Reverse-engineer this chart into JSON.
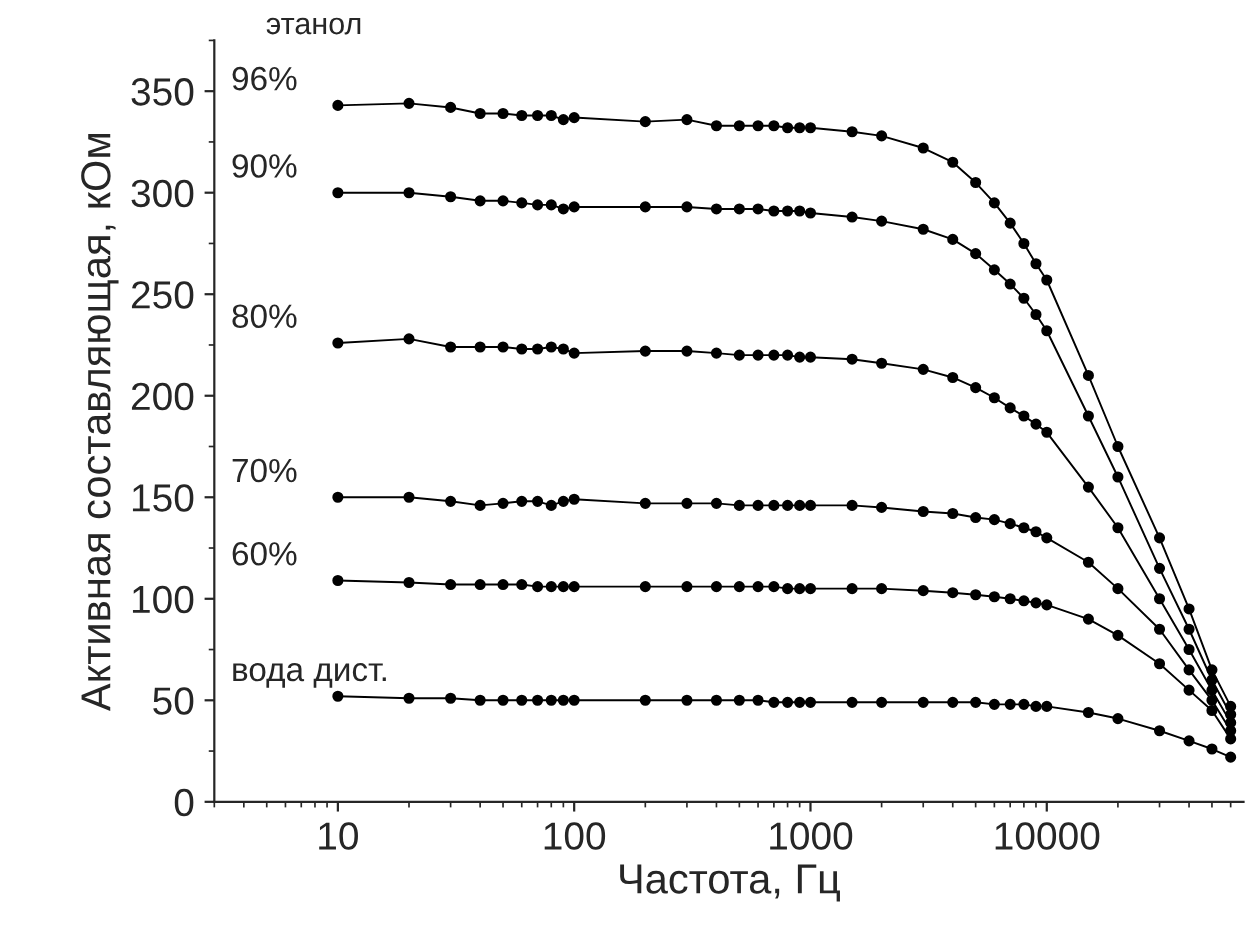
{
  "chart_data": {
    "type": "line",
    "xlabel": "Частота, Гц",
    "ylabel": "Активная составляющая, кОм",
    "log": "x",
    "grid": false,
    "marker": "circle",
    "line_style": "solid",
    "annotations": [
      "этанол"
    ],
    "xlim": [
      3,
      68000
    ],
    "xticks": [
      10,
      100,
      1000,
      10000
    ],
    "ylim": [
      0,
      375
    ],
    "yticks": [
      0,
      50,
      100,
      150,
      200,
      250,
      300,
      350
    ],
    "x": [
      10,
      20,
      30,
      40,
      50,
      60,
      70,
      80,
      90,
      100,
      200,
      300,
      400,
      500,
      600,
      700,
      800,
      900,
      1000,
      1500,
      2000,
      3000,
      4000,
      5000,
      6000,
      7000,
      8000,
      9000,
      10000,
      15000,
      20000,
      30000,
      40000,
      50000,
      60000
    ],
    "series": [
      {
        "name": "96%",
        "color": "#000000",
        "values": [
          343,
          344,
          342,
          339,
          339,
          338,
          338,
          338,
          336,
          337,
          335,
          336,
          333,
          333,
          333,
          333,
          332,
          332,
          332,
          330,
          328,
          322,
          315,
          305,
          295,
          285,
          275,
          265,
          257,
          210,
          175,
          130,
          95,
          65,
          47
        ]
      },
      {
        "name": "90%",
        "color": "#000000",
        "values": [
          300,
          300,
          298,
          296,
          296,
          295,
          294,
          294,
          292,
          293,
          293,
          293,
          292,
          292,
          292,
          291,
          291,
          291,
          290,
          288,
          286,
          282,
          277,
          270,
          262,
          255,
          248,
          240,
          232,
          190,
          160,
          115,
          85,
          60,
          43
        ]
      },
      {
        "name": "80%",
        "color": "#000000",
        "values": [
          226,
          228,
          224,
          224,
          224,
          223,
          223,
          224,
          223,
          221,
          222,
          222,
          221,
          220,
          220,
          220,
          220,
          219,
          219,
          218,
          216,
          213,
          209,
          204,
          199,
          194,
          190,
          186,
          182,
          155,
          135,
          100,
          75,
          55,
          39
        ]
      },
      {
        "name": "70%",
        "color": "#000000",
        "values": [
          150,
          150,
          148,
          146,
          147,
          148,
          148,
          146,
          148,
          149,
          147,
          147,
          147,
          146,
          146,
          146,
          146,
          146,
          146,
          146,
          145,
          143,
          142,
          140,
          139,
          137,
          135,
          133,
          130,
          118,
          105,
          85,
          65,
          50,
          35
        ]
      },
      {
        "name": "60%",
        "color": "#000000",
        "values": [
          109,
          108,
          107,
          107,
          107,
          107,
          106,
          106,
          106,
          106,
          106,
          106,
          106,
          106,
          106,
          106,
          105,
          105,
          105,
          105,
          105,
          104,
          103,
          102,
          101,
          100,
          99,
          98,
          97,
          90,
          82,
          68,
          55,
          45,
          31
        ]
      },
      {
        "name": "вода дист.",
        "color": "#000000",
        "values": [
          52,
          51,
          51,
          50,
          50,
          50,
          50,
          50,
          50,
          50,
          50,
          50,
          50,
          50,
          50,
          49,
          49,
          49,
          49,
          49,
          49,
          49,
          49,
          49,
          48,
          48,
          48,
          47,
          47,
          44,
          41,
          35,
          30,
          26,
          22
        ]
      }
    ]
  }
}
